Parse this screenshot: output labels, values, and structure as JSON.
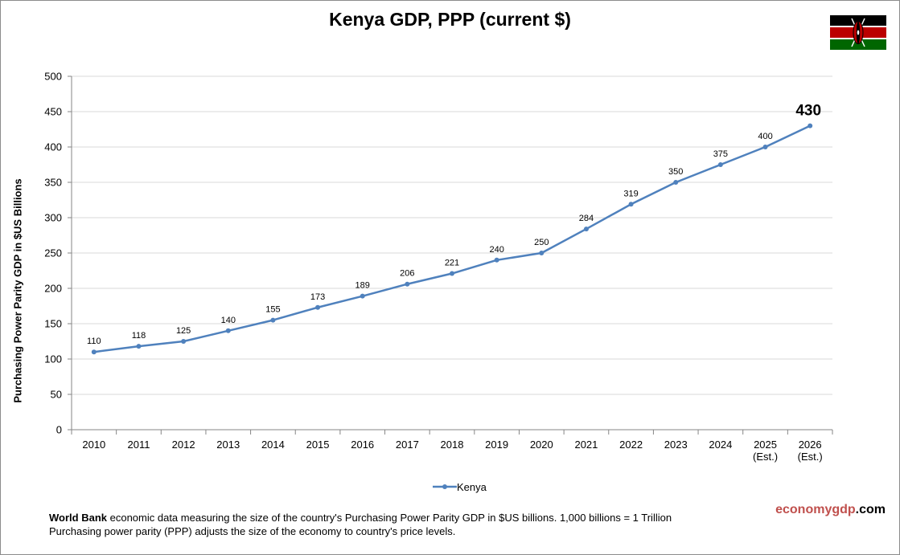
{
  "page": {
    "title": "Kenya GDP, PPP (current $)",
    "flag_icon": "kenya-flag-icon",
    "flag_colors": {
      "black": "#000000",
      "red": "#bb0000",
      "green": "#006600",
      "white": "#ffffff"
    }
  },
  "chart_data": {
    "type": "line",
    "title": "Kenya GDP, PPP (current $)",
    "xlabel": "",
    "ylabel": "Purchasing Power Parity GDP in $US Billions",
    "categories": [
      "2010",
      "2011",
      "2012",
      "2013",
      "2014",
      "2015",
      "2016",
      "2017",
      "2018",
      "2019",
      "2020",
      "2021",
      "2022",
      "2023",
      "2024",
      "2025\n(Est.)",
      "2026\n(Est.)"
    ],
    "series": [
      {
        "name": "Kenya",
        "color": "#4f81bd",
        "values": [
          110,
          118,
          125,
          140,
          155,
          173,
          189,
          206,
          221,
          240,
          250,
          284,
          319,
          350,
          375,
          400,
          430
        ]
      }
    ],
    "ylim": [
      0,
      500
    ],
    "yticks": [
      0,
      50,
      100,
      150,
      200,
      250,
      300,
      350,
      400,
      450,
      500
    ],
    "grid": true,
    "legend": "bottom",
    "highlight_last_label": true
  },
  "footnote": {
    "bold": "World Bank",
    "line1": " economic data measuring the size of the country's Purchasing Power Parity GDP in $US billions. 1,000 billions = 1 Trillion",
    "line2": "Purchasing power parity (PPP) adjusts the size of the economy to country's price levels."
  },
  "brand": {
    "part1": "economygdp",
    "part2": ".com",
    "color1": "#c0504d"
  }
}
